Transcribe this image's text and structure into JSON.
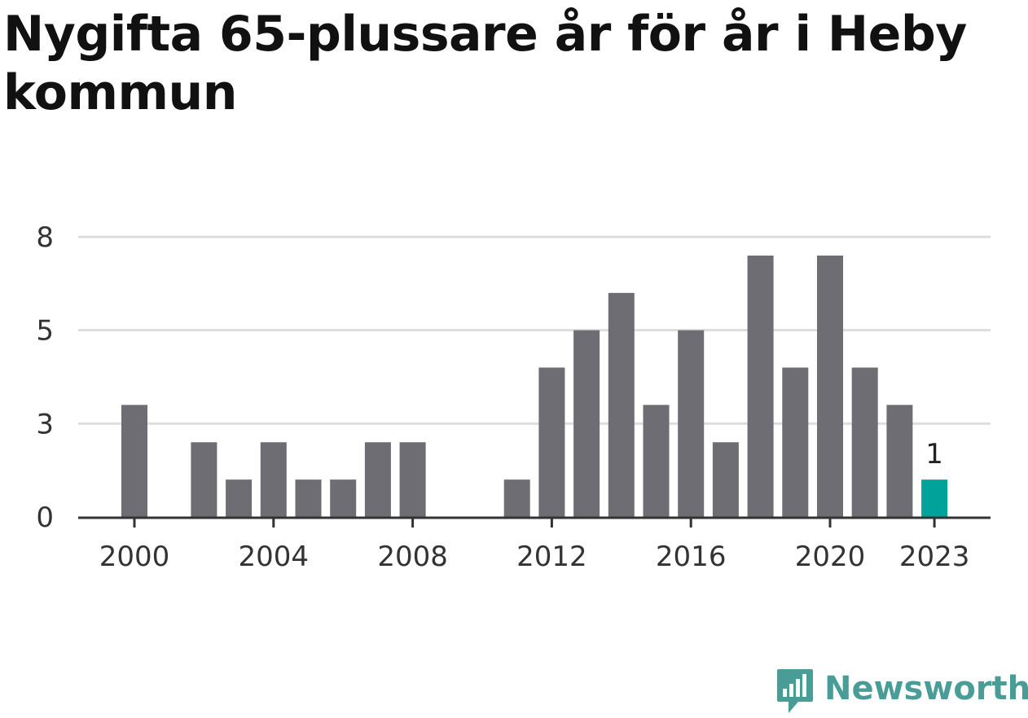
{
  "title": "Nygifta 65-plussare år för år i Heby kommun",
  "brand": {
    "name": "Newsworthy",
    "icon": "newsworthy-logo-icon",
    "color": "#4a9c96"
  },
  "colors": {
    "bar": "#6e6d73",
    "highlight": "#00a39a",
    "grid": "#dddddd",
    "axis": "#333333",
    "text": "#333333"
  },
  "chart_data": {
    "type": "bar",
    "title": "Nygifta 65-plussare år för år i Heby kommun",
    "xlabel": "",
    "ylabel": "",
    "x": [
      2000,
      2001,
      2002,
      2003,
      2004,
      2005,
      2006,
      2007,
      2008,
      2009,
      2010,
      2011,
      2012,
      2013,
      2014,
      2015,
      2016,
      2017,
      2018,
      2019,
      2020,
      2021,
      2022,
      2023
    ],
    "values": [
      3,
      0,
      2,
      1,
      2,
      1,
      1,
      2,
      2,
      0,
      0,
      1,
      4,
      5,
      6,
      3,
      5,
      2,
      7,
      4,
      7,
      4,
      3,
      1
    ],
    "ylim": [
      0,
      7.5
    ],
    "y_ticks": [
      0,
      2.5,
      5,
      7.5
    ],
    "y_tick_labels": [
      "0",
      "3",
      "5",
      "8"
    ],
    "x_tick_labels": [
      2000,
      2004,
      2008,
      2012,
      2016,
      2020,
      2023
    ],
    "highlight": {
      "x": 2023,
      "label": "1"
    },
    "grid": true,
    "legend": "none"
  }
}
